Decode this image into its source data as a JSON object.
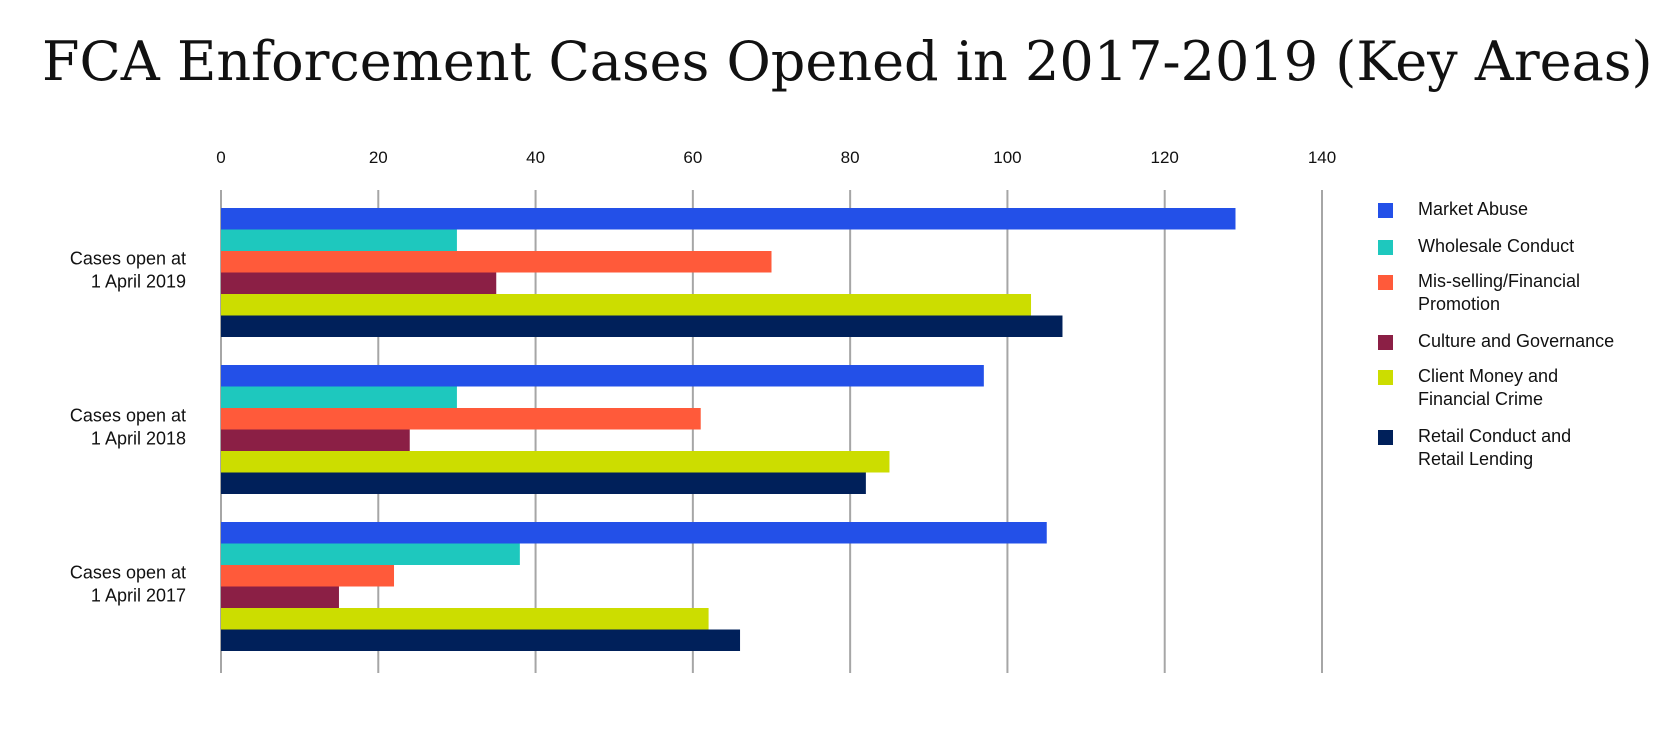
{
  "chart_data": {
    "type": "bar",
    "orientation": "horizontal",
    "title": "FCA Enforcement Cases Opened in 2017-2019 (Key Areas)",
    "xlabel": "",
    "ylabel": "",
    "xlim": [
      0,
      140
    ],
    "x_ticks": [
      "0",
      "20",
      "40",
      "60",
      "80",
      "100",
      "120",
      "140"
    ],
    "grid": true,
    "legend_position": "right",
    "categories": [
      "Cases open at\n1 April 2019",
      "Cases open at\n1 April 2018",
      "Cases open at\n1 April 2017"
    ],
    "series": [
      {
        "name": "Market Abuse",
        "color": "#2350e8",
        "values": [
          129,
          97,
          105
        ]
      },
      {
        "name": "Wholesale Conduct",
        "color": "#1ec8be",
        "values": [
          30,
          30,
          38
        ]
      },
      {
        "name": "Mis-selling/Financial Promotion",
        "color": "#ff5a3a",
        "values": [
          70,
          61,
          22
        ]
      },
      {
        "name": "Culture and Governance",
        "color": "#8b1f45",
        "values": [
          35,
          24,
          15
        ]
      },
      {
        "name": "Client Money and Financial Crime",
        "color": "#ccdd00",
        "values": [
          103,
          85,
          62
        ]
      },
      {
        "name": "Retail Conduct and Retail Lending",
        "color": "#00205a",
        "values": [
          107,
          82,
          66
        ]
      }
    ]
  },
  "legend": {
    "items": [
      {
        "label": "Market Abuse",
        "color": "#2350e8"
      },
      {
        "label": "Wholesale Conduct",
        "color": "#1ec8be"
      },
      {
        "label": "Mis-selling/Financial\nPromotion",
        "color": "#ff5a3a"
      },
      {
        "label": "Culture and Governance",
        "color": "#8b1f45"
      },
      {
        "label": "Client Money and\nFinancial Crime",
        "color": "#ccdd00"
      },
      {
        "label": "Retail Conduct and\nRetail Lending",
        "color": "#00205a"
      }
    ]
  }
}
